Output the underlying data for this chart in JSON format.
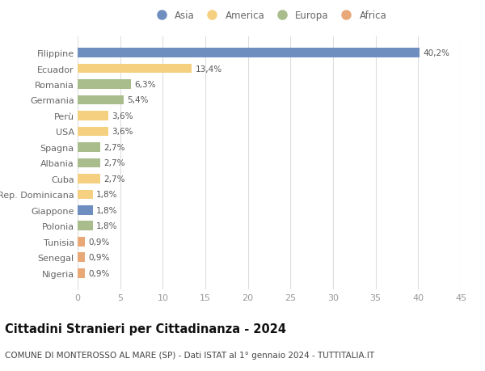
{
  "categories": [
    "Nigeria",
    "Senegal",
    "Tunisia",
    "Polonia",
    "Giappone",
    "Rep. Dominicana",
    "Cuba",
    "Albania",
    "Spagna",
    "USA",
    "Perù",
    "Germania",
    "Romania",
    "Ecuador",
    "Filippine"
  ],
  "values": [
    0.9,
    0.9,
    0.9,
    1.8,
    1.8,
    1.8,
    2.7,
    2.7,
    2.7,
    3.6,
    3.6,
    5.4,
    6.3,
    13.4,
    40.2
  ],
  "labels": [
    "0,9%",
    "0,9%",
    "0,9%",
    "1,8%",
    "1,8%",
    "1,8%",
    "2,7%",
    "2,7%",
    "2,7%",
    "3,6%",
    "3,6%",
    "5,4%",
    "6,3%",
    "13,4%",
    "40,2%"
  ],
  "continents": [
    "Africa",
    "Africa",
    "Africa",
    "Europa",
    "Asia",
    "America",
    "America",
    "Europa",
    "Europa",
    "America",
    "America",
    "Europa",
    "Europa",
    "America",
    "Asia"
  ],
  "continent_colors": {
    "Asia": "#6e8ec0",
    "America": "#f5d080",
    "Europa": "#a8bc8c",
    "Africa": "#e8a878"
  },
  "legend_order": [
    "Asia",
    "America",
    "Europa",
    "Africa"
  ],
  "title": "Cittadini Stranieri per Cittadinanza - 2024",
  "subtitle": "COMUNE DI MONTEROSSO AL MARE (SP) - Dati ISTAT al 1° gennaio 2024 - TUTTITALIA.IT",
  "xlim": [
    0,
    45
  ],
  "xticks": [
    0,
    5,
    10,
    15,
    20,
    25,
    30,
    35,
    40,
    45
  ],
  "background_color": "#ffffff",
  "grid_color": "#dddddd",
  "bar_height": 0.6,
  "title_fontsize": 10.5,
  "subtitle_fontsize": 7.5,
  "tick_fontsize": 8,
  "label_fontsize": 7.5,
  "legend_fontsize": 8.5
}
